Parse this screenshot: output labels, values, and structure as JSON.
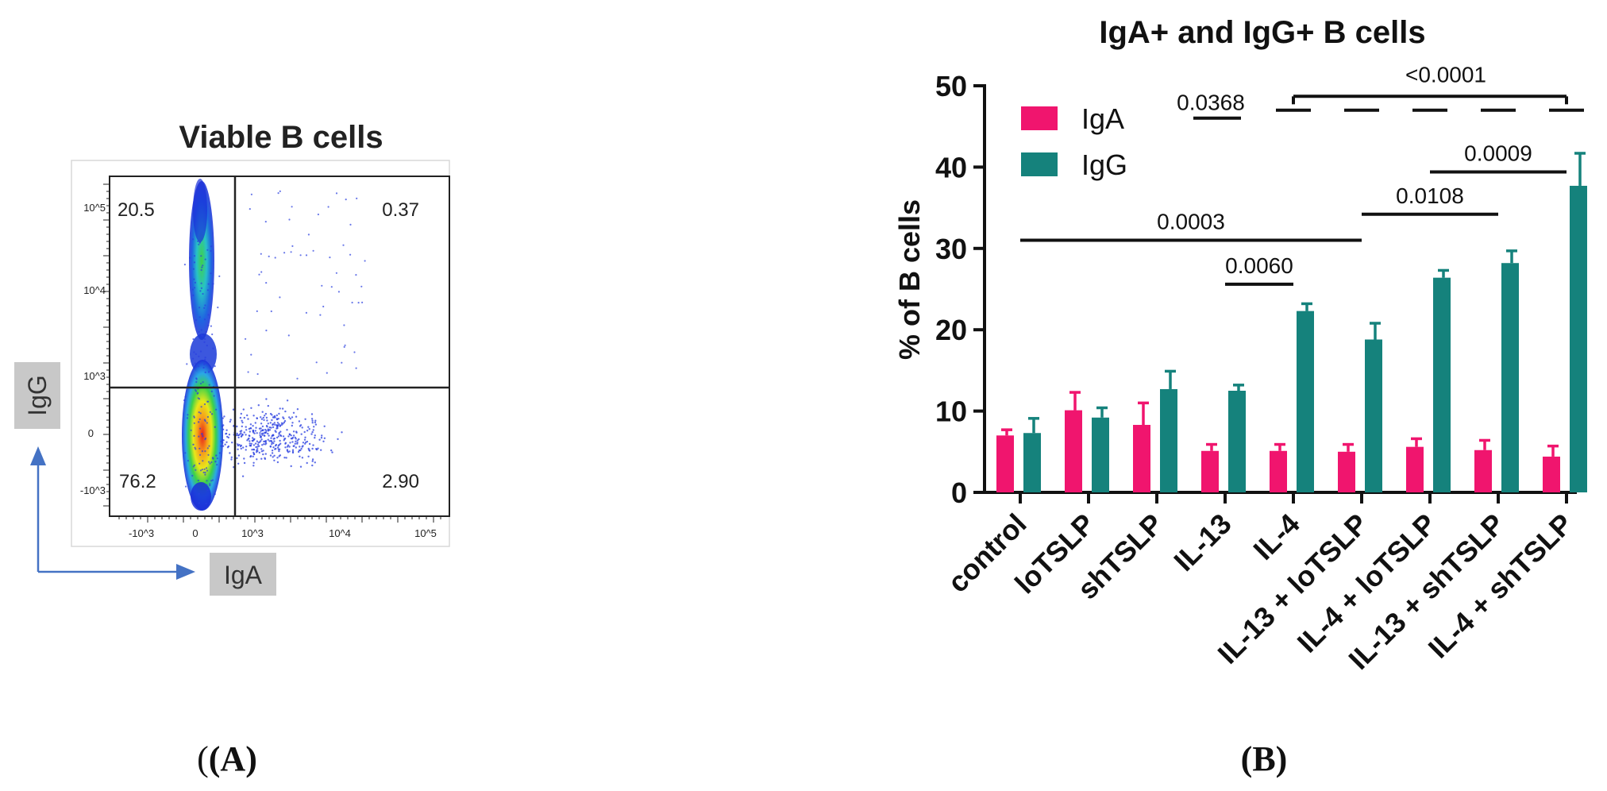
{
  "panel_a": {
    "title": "Viable B cells",
    "x_label": "IgA",
    "y_label": "IgG",
    "quadrants": {
      "top_left": "20.5",
      "top_right": "0.37",
      "bottom_left": "76.2",
      "bottom_right": "2.90"
    },
    "x_ticks": [
      "-10^3",
      "0",
      "10^3",
      "10^4",
      "10^5"
    ],
    "y_ticks": [
      "10^5",
      "10^4",
      "10^3",
      "0",
      "-10^3"
    ],
    "caption": "(A)"
  },
  "chart_data": {
    "type": "bar",
    "title": "IgA+ and IgG+ B cells",
    "ylabel": "% of B cells",
    "xlabel": "",
    "ylim": [
      0,
      50
    ],
    "yticks": [
      0,
      10,
      20,
      30,
      40,
      50
    ],
    "categories": [
      "control",
      "loTSLP",
      "shTSLP",
      "IL-13",
      "IL-4",
      "IL-13 + loTSLP",
      "IL-4 + loTSLP",
      "IL-13 + shTSLP",
      "IL-4 + shTSLP"
    ],
    "series": [
      {
        "name": "IgA",
        "color": "#f0156e",
        "values": [
          7.0,
          10.1,
          8.3,
          5.1,
          5.1,
          5.0,
          5.6,
          5.2,
          4.4
        ],
        "errors": [
          0.7,
          2.2,
          2.7,
          0.8,
          0.8,
          0.9,
          1.0,
          1.2,
          1.3
        ]
      },
      {
        "name": "IgG",
        "color": "#15827c",
        "values": [
          7.3,
          9.2,
          12.7,
          12.5,
          22.3,
          18.8,
          26.4,
          28.2,
          37.7
        ],
        "errors": [
          1.8,
          1.2,
          2.2,
          0.7,
          0.9,
          2.0,
          0.9,
          1.5,
          4.0
        ]
      }
    ],
    "legend": "top-left",
    "annotations": [
      {
        "label": "0.0003",
        "from": 0,
        "to": 5,
        "y": 31.0
      },
      {
        "label": "0.0060",
        "from": 3,
        "to": 4,
        "y": 25.6
      },
      {
        "label": "0.0108",
        "from": 5,
        "to": 7,
        "y": 34.2
      },
      {
        "label": "0.0009",
        "from": 6,
        "to": 8,
        "y": 39.4
      },
      {
        "label": "<0.0001",
        "from": 4,
        "to": 8,
        "y": 48.7,
        "dashed": true
      },
      {
        "label": "0.0368",
        "from": 3,
        "to": 3,
        "y": 47.0,
        "short": true
      }
    ],
    "caption": "(B)"
  }
}
